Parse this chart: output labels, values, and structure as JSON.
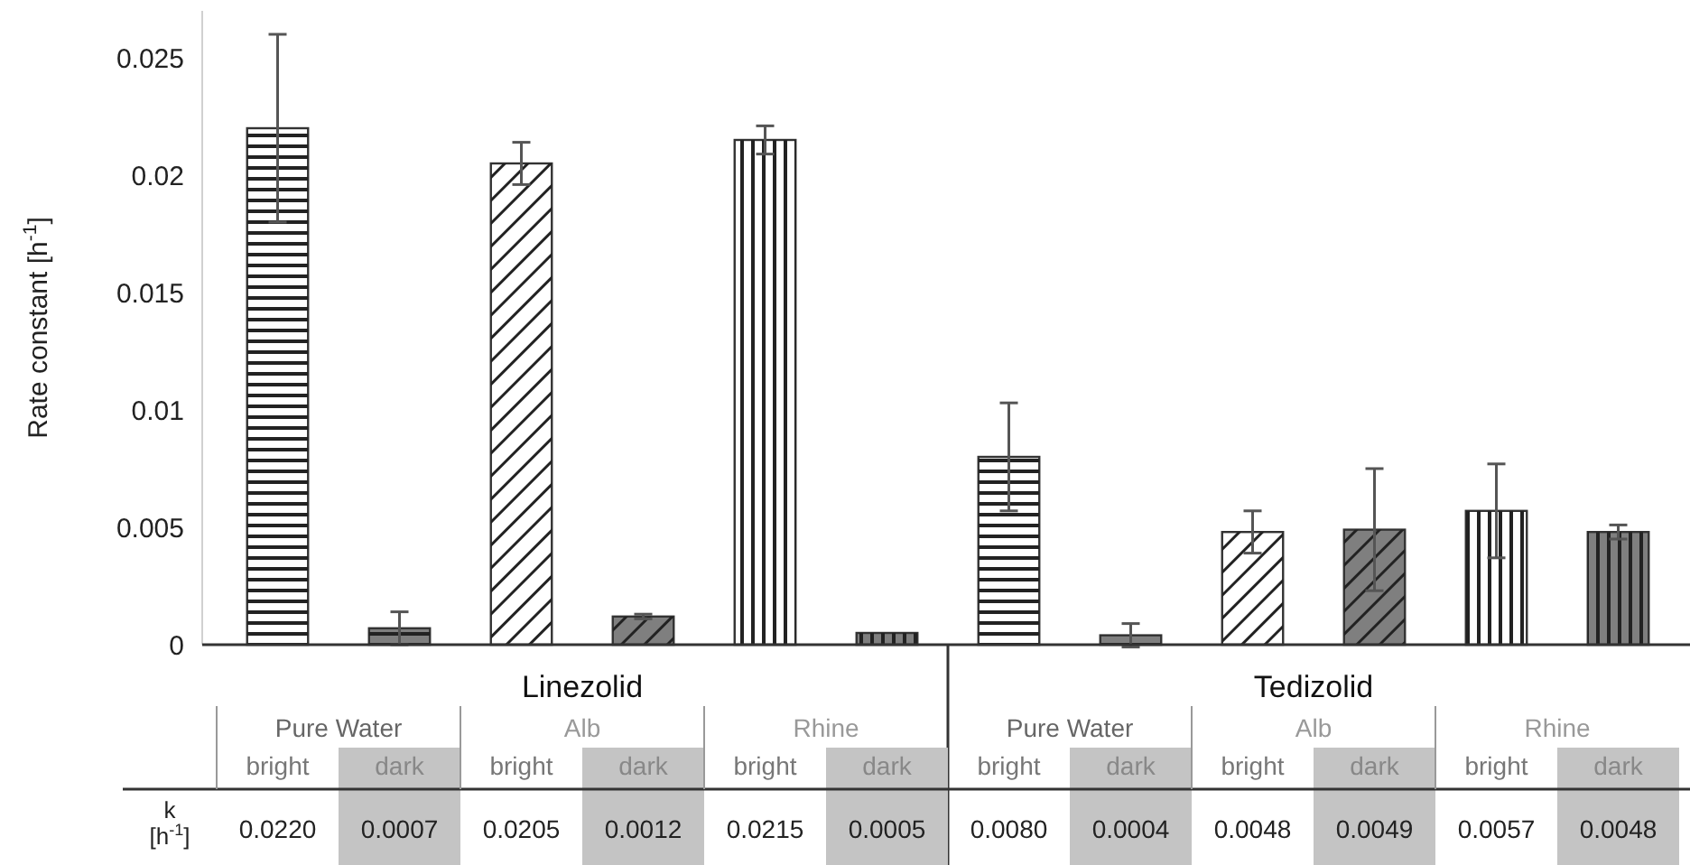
{
  "chart_data": {
    "type": "bar",
    "ylabel": "Rate constant [h$^{-1}$]",
    "categories": [
      "bright",
      "dark",
      "bright",
      "dark",
      "bright",
      "dark",
      "bright",
      "dark",
      "bright",
      "dark",
      "bright",
      "dark"
    ],
    "values": [
      0.022,
      0.0007,
      0.0205,
      0.0012,
      0.0215,
      0.0005,
      0.008,
      0.0004,
      0.0048,
      0.0049,
      0.0057,
      0.0048
    ],
    "value_labels": [
      "0.0220",
      "0.0007",
      "0.0205",
      "0.0012",
      "0.0215",
      "0.0005",
      "0.0080",
      "0.0004",
      "0.0048",
      "0.0049",
      "0.0057",
      "0.0048"
    ],
    "errors": [
      0.004,
      0.0007,
      0.0009,
      0.0001,
      0.0006,
      null,
      0.0023,
      0.0005,
      0.0009,
      0.0026,
      0.002,
      0.0003
    ],
    "colors": [
      "#ffffff",
      "#7f7f7f",
      "#ffffff",
      "#7f7f7f",
      "#ffffff",
      "#7f7f7f",
      "#ffffff",
      "#7f7f7f",
      "#ffffff",
      "#7f7f7f",
      "#ffffff",
      "#7f7f7f"
    ],
    "ylim": [
      0,
      0.027
    ],
    "yticks": [
      0,
      0.005,
      0.01,
      0.015,
      0.02,
      0.025
    ],
    "grid": false,
    "annotations": [
      "Linezolid",
      "Tedizolid",
      "Pure Water",
      "Alb",
      "Rhine",
      "Pure Water",
      "Alb",
      "Rhine",
      "k [h$^{-1}$]"
    ]
  }
}
